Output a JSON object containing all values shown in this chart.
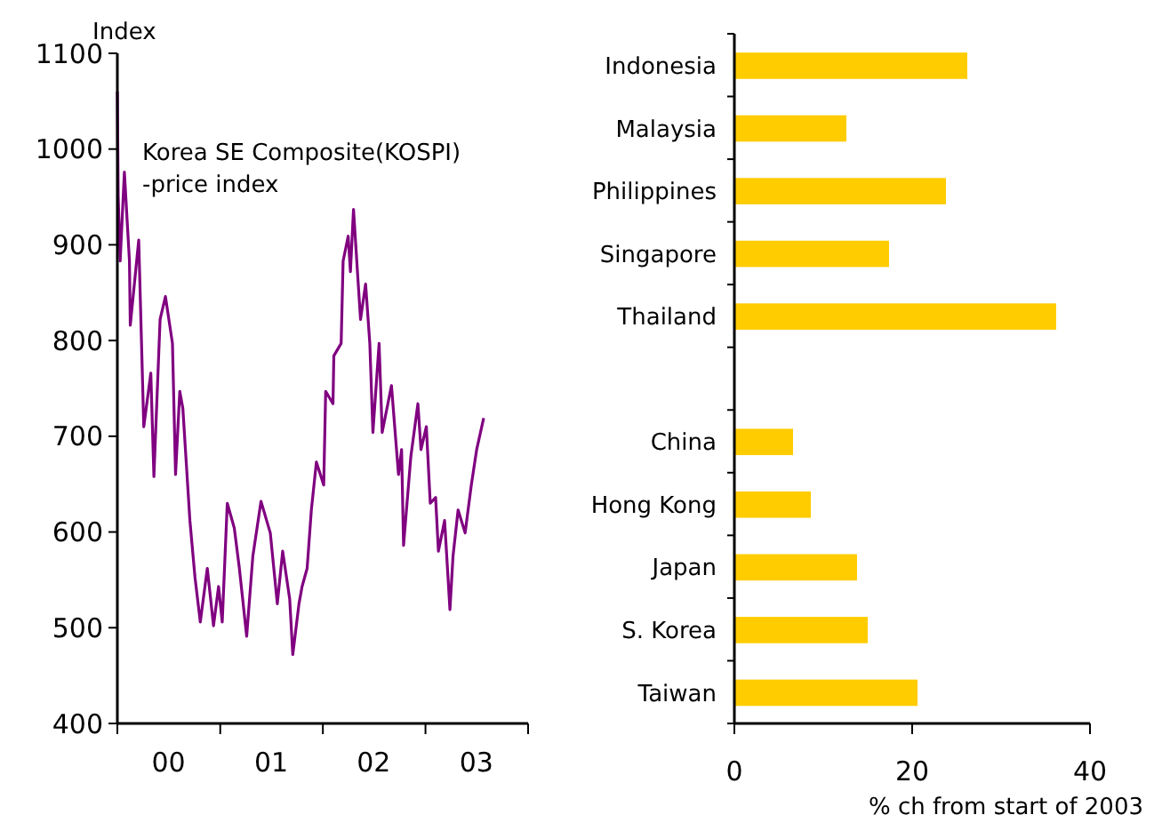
{
  "chart_data": [
    {
      "type": "line",
      "ylabel": "Index",
      "annotations": [
        "Korea SE Composite(KOSPI)\n-price index"
      ],
      "xlim": [
        "2000-01-01",
        "2004-01-01"
      ],
      "xticks": [
        {
          "value": "2000-01-01",
          "label": null
        },
        {
          "value": "2000-07-01",
          "label": "00"
        },
        {
          "value": "2001-01-01",
          "label": null
        },
        {
          "value": "2001-07-01",
          "label": "01"
        },
        {
          "value": "2002-01-01",
          "label": null
        },
        {
          "value": "2002-07-01",
          "label": "02"
        },
        {
          "value": "2003-01-01",
          "label": null
        },
        {
          "value": "2003-07-01",
          "label": "03"
        },
        {
          "value": "2004-01-01",
          "label": null
        }
      ],
      "ylim": [
        400,
        1100
      ],
      "yticks": [
        400,
        500,
        600,
        700,
        800,
        900,
        1000,
        1100
      ],
      "series": [
        {
          "color": "#800080",
          "x": [
            "2000-01-01",
            "2000-01-04",
            "2000-01-11",
            "2000-01-26",
            "2000-02-13",
            "2000-02-16",
            "2000-03-17",
            "2000-04-04",
            "2000-04-29",
            "2000-05-10",
            "2000-06-01",
            "2000-06-20",
            "2000-07-15",
            "2000-07-26",
            "2000-08-10",
            "2000-08-21",
            "2000-09-15",
            "2000-10-03",
            "2000-10-22",
            "2000-11-16",
            "2000-12-08",
            "2000-12-26",
            "2001-01-08",
            "2001-01-26",
            "2001-02-20",
            "2001-03-10",
            "2001-04-05",
            "2001-04-27",
            "2001-05-26",
            "2001-06-28",
            "2001-07-23",
            "2001-08-11",
            "2001-09-05",
            "2001-09-16",
            "2001-10-08",
            "2001-10-19",
            "2001-11-06",
            "2001-11-21",
            "2001-12-09",
            "2002-01-04",
            "2002-01-11",
            "2002-02-06",
            "2002-02-09",
            "2002-03-07",
            "2002-03-14",
            "2002-04-01",
            "2002-04-09",
            "2002-04-20",
            "2002-05-04",
            "2002-05-15",
            "2002-06-02",
            "2002-06-17",
            "2002-06-28",
            "2002-07-20",
            "2002-07-31",
            "2002-09-02",
            "2002-09-27",
            "2002-10-08",
            "2002-10-15",
            "2002-11-10",
            "2002-12-05",
            "2002-12-16",
            "2003-01-04",
            "2003-01-18",
            "2003-02-06",
            "2003-02-16",
            "2003-03-10",
            "2003-03-29",
            "2003-04-09",
            "2003-04-27",
            "2003-05-22",
            "2003-06-13",
            "2003-07-02",
            "2003-07-27"
          ],
          "values": [
            1060,
            951,
            883,
            976,
            883,
            816,
            905,
            710,
            766,
            658,
            822,
            846,
            797,
            660,
            747,
            729,
            612,
            553,
            506,
            562,
            502,
            543,
            506,
            630,
            604,
            562,
            491,
            575,
            632,
            599,
            525,
            580,
            530,
            472,
            525,
            543,
            562,
            623,
            673,
            649,
            747,
            734,
            784,
            797,
            883,
            909,
            872,
            937,
            872,
            822,
            859,
            797,
            704,
            797,
            704,
            753,
            660,
            686,
            586,
            679,
            734,
            686,
            710,
            630,
            636,
            580,
            612,
            519,
            575,
            623,
            599,
            649,
            686,
            719
          ]
        }
      ]
    },
    {
      "type": "bar",
      "orientation": "horizontal",
      "xlabel": "% ch from start of 2003",
      "categories": [
        "Indonesia",
        "Malaysia",
        "Philippines",
        "Singapore",
        "Thailand",
        null,
        "China",
        "Hong Kong",
        "Japan",
        "S. Korea",
        "Taiwan"
      ],
      "values": [
        26.2,
        12.6,
        23.8,
        17.4,
        36.2,
        null,
        6.6,
        8.6,
        13.8,
        15,
        20.6
      ],
      "color": "#ffcc00",
      "xlim": [
        0,
        40
      ],
      "xticks": [
        0,
        20,
        40
      ]
    }
  ]
}
